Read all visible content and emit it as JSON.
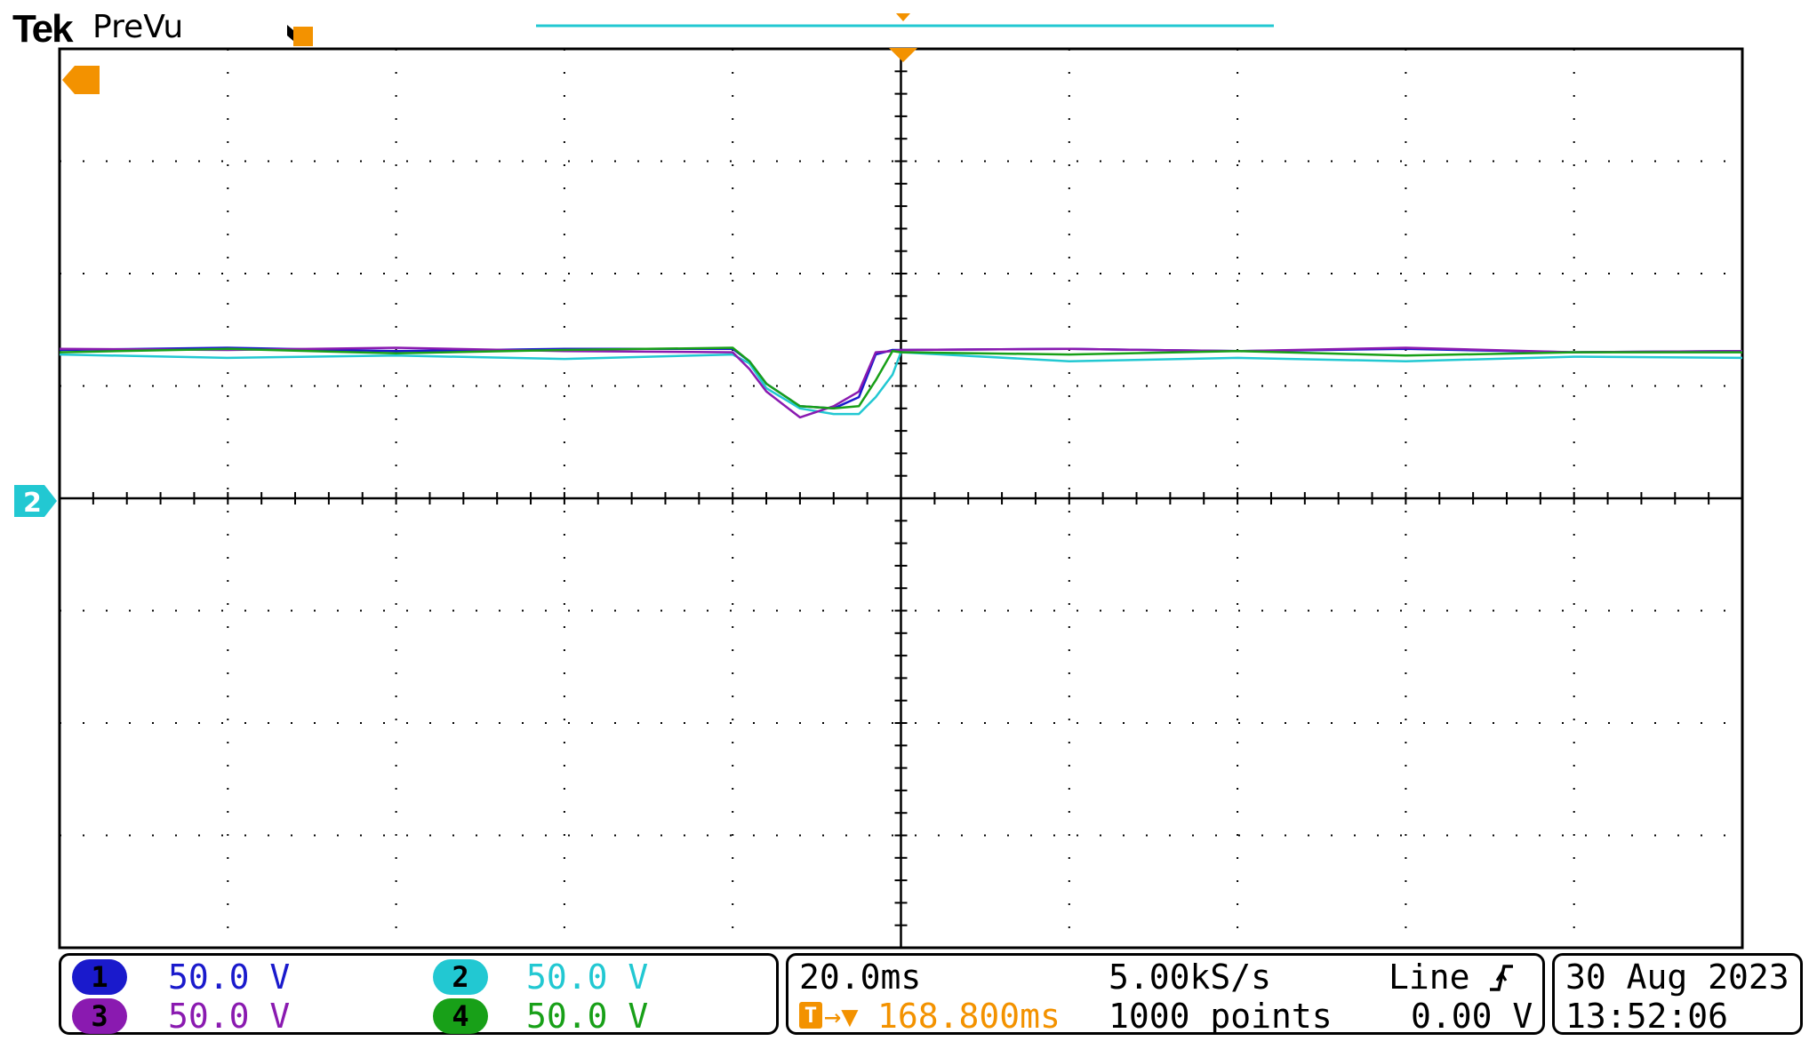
{
  "header": {
    "brand": "Tek",
    "mode": "PreVu",
    "trigger_marker": "T"
  },
  "colors": {
    "ch1": "#1a1acc",
    "ch2": "#22c8d2",
    "ch3": "#8a1ab0",
    "ch4": "#18a018",
    "trigger": "#f39200",
    "grid": "#000000"
  },
  "channels": [
    {
      "id": "1",
      "scale": "50.0 V",
      "color_key": "ch1"
    },
    {
      "id": "2",
      "scale": "50.0 V",
      "color_key": "ch2"
    },
    {
      "id": "3",
      "scale": "50.0 V",
      "color_key": "ch3"
    },
    {
      "id": "4",
      "scale": "50.0 V",
      "color_key": "ch4"
    }
  ],
  "ground_marker": "2",
  "timebase": {
    "time_div": "20.0ms",
    "sample_rate": "5.00kS/s",
    "trigger_source": "Line",
    "trigger_slope_icon": "rising-edge-icon",
    "trigger_position_glyph": "T",
    "trigger_arrow": "→▼",
    "trigger_delay": "168.800ms",
    "record_length": "1000 points",
    "trigger_level": "0.00 V"
  },
  "date": "30 Aug 2023",
  "time": "13:52:06",
  "chart_data": {
    "type": "line",
    "xlabel": "",
    "ylabel": "",
    "xlim": [
      -5,
      5
    ],
    "ylim": [
      -4,
      4
    ],
    "grid": true,
    "x_units": "divisions",
    "y_units": "divisions",
    "series": [
      {
        "name": "1",
        "x": [
          -5,
          -4,
          -3,
          -2,
          -1,
          -0.9,
          -0.8,
          -0.6,
          -0.4,
          -0.25,
          -0.15,
          -0.05,
          0,
          1,
          2,
          3,
          4,
          5
        ],
        "y": [
          1.32,
          1.34,
          1.31,
          1.33,
          1.33,
          1.22,
          1.02,
          0.82,
          0.8,
          0.9,
          1.28,
          1.32,
          1.32,
          1.33,
          1.31,
          1.33,
          1.3,
          1.31
        ]
      },
      {
        "name": "2",
        "x": [
          -5,
          -4,
          -3,
          -2,
          -1,
          -0.9,
          -0.8,
          -0.6,
          -0.4,
          -0.25,
          -0.15,
          -0.05,
          0,
          1,
          2,
          3,
          4,
          5
        ],
        "y": [
          1.28,
          1.25,
          1.27,
          1.24,
          1.28,
          1.2,
          0.98,
          0.8,
          0.75,
          0.75,
          0.9,
          1.1,
          1.3,
          1.22,
          1.25,
          1.22,
          1.26,
          1.25
        ]
      },
      {
        "name": "3",
        "x": [
          -5,
          -4,
          -3,
          -2,
          -1,
          -0.9,
          -0.8,
          -0.6,
          -0.4,
          -0.25,
          -0.15,
          -0.05,
          0,
          1,
          2,
          3,
          4,
          5
        ],
        "y": [
          1.33,
          1.32,
          1.34,
          1.31,
          1.3,
          1.15,
          0.95,
          0.72,
          0.82,
          0.95,
          1.3,
          1.31,
          1.32,
          1.33,
          1.31,
          1.34,
          1.3,
          1.31
        ]
      },
      {
        "name": "4",
        "x": [
          -5,
          -4,
          -3,
          -2,
          -1,
          -0.9,
          -0.8,
          -0.6,
          -0.4,
          -0.25,
          -0.15,
          -0.05,
          0,
          1,
          2,
          3,
          4,
          5
        ],
        "y": [
          1.3,
          1.33,
          1.29,
          1.32,
          1.34,
          1.22,
          1.02,
          0.82,
          0.8,
          0.82,
          1.05,
          1.31,
          1.3,
          1.28,
          1.31,
          1.27,
          1.3,
          1.3
        ]
      }
    ]
  }
}
